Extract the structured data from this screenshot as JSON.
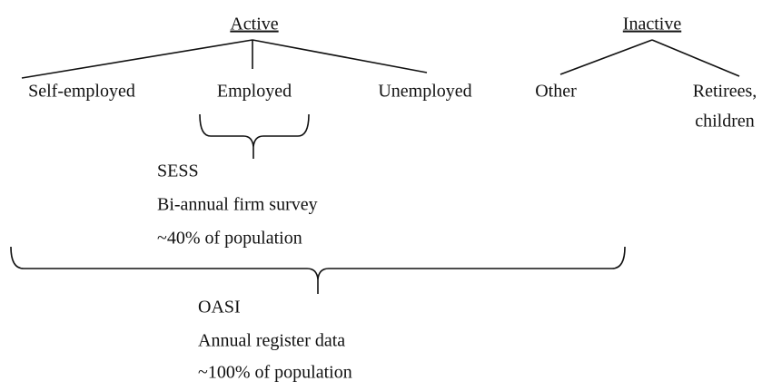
{
  "groups": [
    {
      "label": "Active",
      "children": [
        [
          "Self-employed"
        ],
        [
          "Employed"
        ],
        [
          "Unemployed"
        ]
      ]
    },
    {
      "label": "Inactive",
      "children": [
        [
          "Other"
        ],
        [
          "Retirees,",
          "children"
        ]
      ]
    }
  ],
  "sources": [
    {
      "lines": [
        "SESS",
        "Bi-annual firm survey",
        "~40% of population"
      ]
    },
    {
      "lines": [
        "OASI",
        "Annual register data",
        "~100% of population"
      ]
    }
  ]
}
